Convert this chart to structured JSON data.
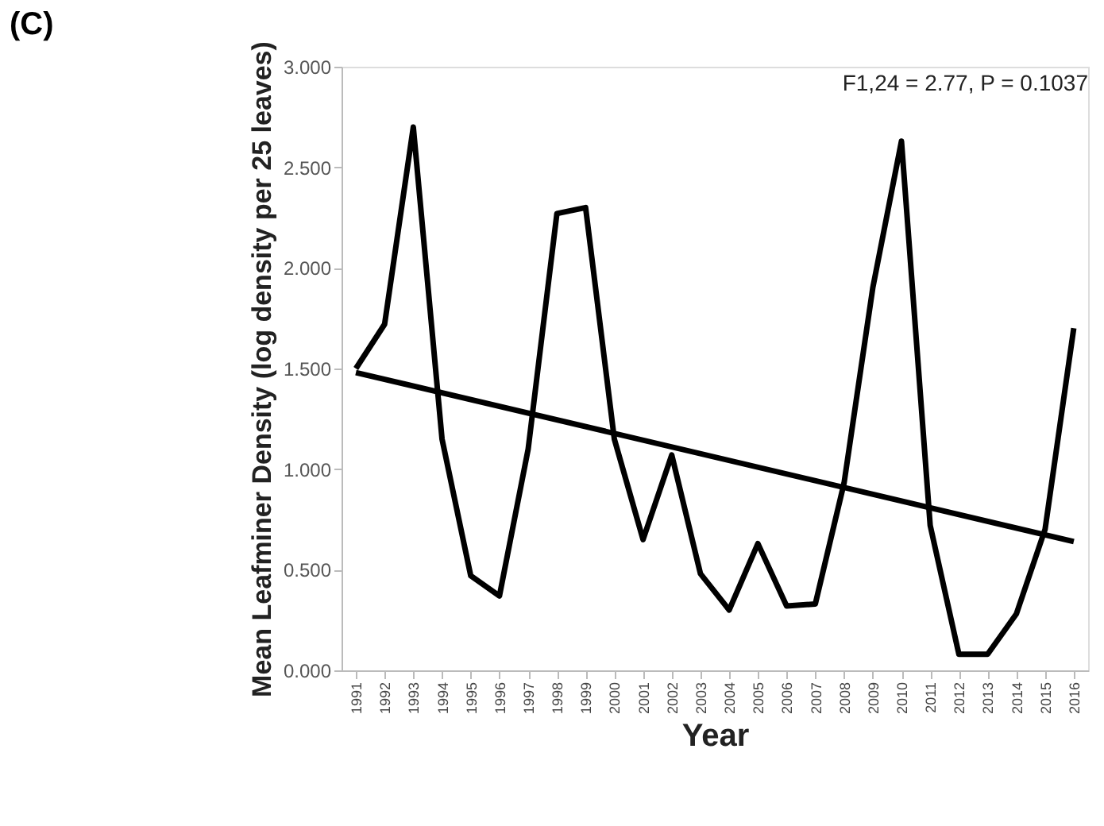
{
  "chart_data": {
    "type": "line",
    "title": "(C)",
    "xlabel": "Year",
    "ylabel": "Mean Leafminer Density (log density per 25 leaves)",
    "categories": [
      "1991",
      "1992",
      "1993",
      "1994",
      "1995",
      "1996",
      "1997",
      "1998",
      "1999",
      "2000",
      "2001",
      "2002",
      "2003",
      "2004",
      "2005",
      "2006",
      "2007",
      "2008",
      "2009",
      "2010",
      "2011",
      "2012",
      "2013",
      "2014",
      "2015",
      "2016"
    ],
    "series": [
      {
        "color": "#000000",
        "values": [
          1.5,
          1.72,
          2.7,
          1.15,
          0.47,
          0.37,
          1.1,
          2.27,
          2.3,
          1.15,
          0.65,
          1.07,
          0.48,
          0.3,
          0.63,
          0.32,
          0.33,
          0.93,
          1.9,
          2.63,
          0.72,
          0.08,
          0.08,
          0.28,
          0.7,
          1.7
        ]
      },
      {
        "type": "line",
        "color": "#000000",
        "values": [
          1.48,
          null,
          null,
          null,
          null,
          null,
          null,
          null,
          null,
          null,
          null,
          null,
          null,
          null,
          null,
          null,
          null,
          null,
          null,
          null,
          null,
          null,
          null,
          null,
          null,
          0.64
        ]
      }
    ],
    "ylim": [
      0,
      3
    ],
    "yticks": [
      {
        "value": 0,
        "label": "0.000"
      },
      {
        "value": 0.5,
        "label": "0.500"
      },
      {
        "value": 1,
        "label": "1.000"
      },
      {
        "value": 1.5,
        "label": "1.500"
      },
      {
        "value": 2,
        "label": "2.000"
      },
      {
        "value": 2.5,
        "label": "2.500"
      },
      {
        "value": 3,
        "label": "3.000"
      }
    ],
    "annotations": [
      "F1,24 = 2.77, P = 0.1037"
    ],
    "grid": false,
    "marker": "none",
    "line_style": "solid"
  }
}
